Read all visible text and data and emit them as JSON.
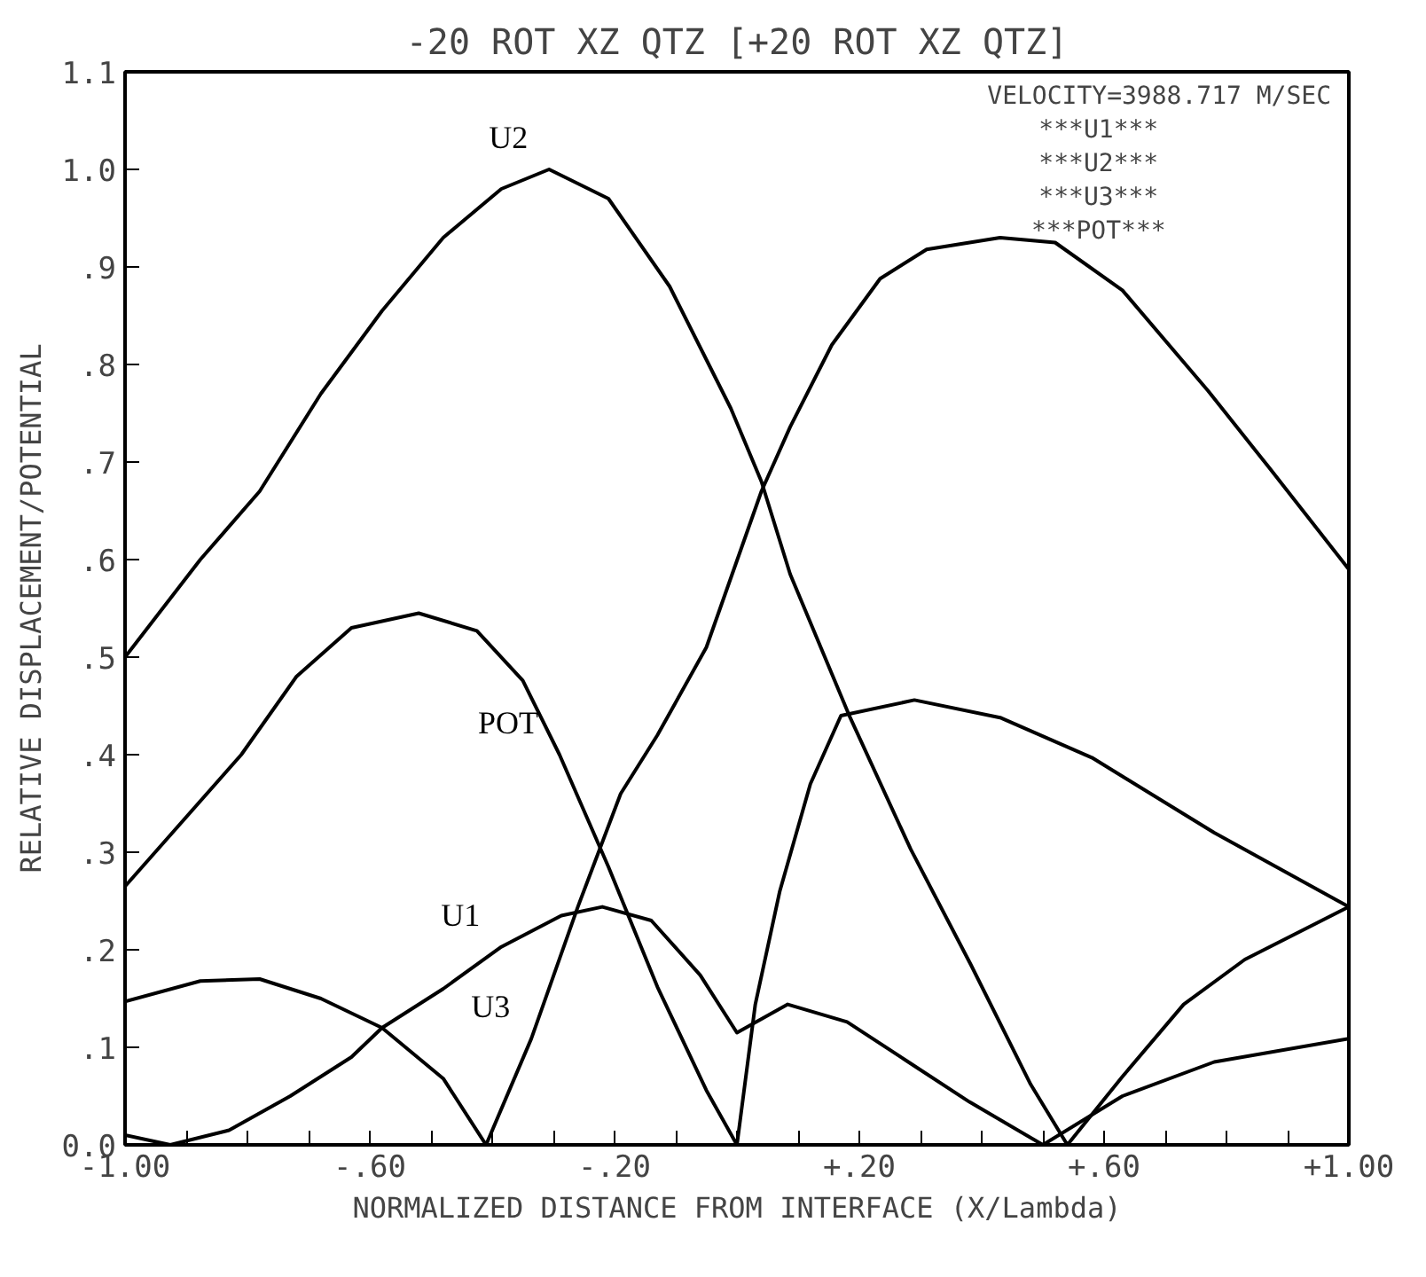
{
  "chart_data": {
    "type": "line",
    "title": "-20 ROT XZ QTZ [+20 ROT XZ QTZ]",
    "xlabel": "NORMALIZED DISTANCE FROM INTERFACE (X/Lambda)",
    "ylabel": "RELATIVE DISPLACEMENT/POTENTIAL",
    "annotations": [
      "VELOCITY=3988.717 M/SEC",
      "***U1***",
      "***U2***",
      "***U3***",
      "***POT***"
    ],
    "xlim": [
      -1.0,
      1.0
    ],
    "ylim": [
      0.0,
      1.1
    ],
    "xticks": [
      {
        "value": -1.0,
        "label": "-1.00"
      },
      {
        "value": -0.9,
        "label": null
      },
      {
        "value": -0.8,
        "label": null
      },
      {
        "value": -0.7,
        "label": null
      },
      {
        "value": -0.6,
        "label": "-.60"
      },
      {
        "value": -0.5,
        "label": null
      },
      {
        "value": -0.4,
        "label": null
      },
      {
        "value": -0.3,
        "label": null
      },
      {
        "value": -0.2,
        "label": "-.20"
      },
      {
        "value": -0.1,
        "label": null
      },
      {
        "value": 0.0,
        "label": null
      },
      {
        "value": 0.1,
        "label": null
      },
      {
        "value": 0.2,
        "label": "+.20"
      },
      {
        "value": 0.3,
        "label": null
      },
      {
        "value": 0.4,
        "label": null
      },
      {
        "value": 0.5,
        "label": null
      },
      {
        "value": 0.6,
        "label": "+.60"
      },
      {
        "value": 0.7,
        "label": null
      },
      {
        "value": 0.8,
        "label": null
      },
      {
        "value": 0.9,
        "label": null
      },
      {
        "value": 1.0,
        "label": "+1.00"
      }
    ],
    "yticks": [
      {
        "value": 0.0,
        "label": "0.0"
      },
      {
        "value": 0.1,
        "label": ".1"
      },
      {
        "value": 0.2,
        "label": ".2"
      },
      {
        "value": 0.3,
        "label": ".3"
      },
      {
        "value": 0.4,
        "label": ".4"
      },
      {
        "value": 0.5,
        "label": ".5"
      },
      {
        "value": 0.6,
        "label": ".6"
      },
      {
        "value": 0.7,
        "label": ".7"
      },
      {
        "value": 0.8,
        "label": ".8"
      },
      {
        "value": 0.9,
        "label": ".9"
      },
      {
        "value": 1.0,
        "label": "1.0"
      },
      {
        "value": 1.1,
        "label": "1.1"
      }
    ],
    "grid": false,
    "marker": "none",
    "line_style": "solid",
    "series": [
      {
        "name": "U1",
        "color": "#000000",
        "x": [
          -1.0,
          -0.926,
          -0.83,
          -0.73,
          -0.63,
          -0.58,
          -0.48,
          -0.385,
          -0.287,
          -0.22,
          -0.14,
          -0.06,
          0.0,
          0.083,
          0.18,
          0.28,
          0.38,
          0.5,
          0.63,
          0.78,
          1.0
        ],
        "values": [
          0.01,
          0.0,
          0.015,
          0.05,
          0.09,
          0.12,
          0.16,
          0.203,
          0.235,
          0.244,
          0.23,
          0.174,
          0.115,
          0.144,
          0.126,
          0.085,
          0.044,
          0.0,
          0.05,
          0.085,
          0.109
        ]
      },
      {
        "name": "U2",
        "color": "#000000",
        "x": [
          -1.0,
          -0.877,
          -0.78,
          -0.68,
          -0.58,
          -0.48,
          -0.385,
          -0.307,
          -0.21,
          -0.11,
          -0.01,
          0.04,
          0.087,
          0.185,
          0.284,
          0.382,
          0.48,
          0.54,
          0.63,
          0.73,
          0.83,
          1.0
        ],
        "values": [
          0.5,
          0.6,
          0.67,
          0.77,
          0.855,
          0.93,
          0.98,
          1.0,
          0.97,
          0.88,
          0.755,
          0.68,
          0.585,
          0.438,
          0.303,
          0.185,
          0.062,
          0.0,
          0.07,
          0.144,
          0.19,
          0.244
        ]
      },
      {
        "name": "U3",
        "color": "#000000",
        "x": [
          -1.0,
          -0.877,
          -0.78,
          -0.68,
          -0.58,
          -0.48,
          -0.41,
          -0.336,
          -0.26,
          -0.19,
          -0.13,
          -0.05,
          0.04,
          0.087,
          0.155,
          0.234,
          0.31,
          0.43,
          0.52,
          0.63,
          0.77,
          0.87,
          1.0
        ],
        "values": [
          0.147,
          0.168,
          0.17,
          0.15,
          0.12,
          0.068,
          0.0,
          0.109,
          0.244,
          0.36,
          0.42,
          0.51,
          0.67,
          0.736,
          0.82,
          0.888,
          0.918,
          0.93,
          0.925,
          0.876,
          0.773,
          0.694,
          0.59
        ]
      },
      {
        "name": "POT",
        "color": "#000000",
        "x": [
          -1.0,
          -0.81,
          -0.72,
          -0.63,
          -0.52,
          -0.425,
          -0.35,
          -0.29,
          -0.21,
          -0.13,
          -0.05,
          0.0,
          0.03,
          0.07,
          0.12,
          0.17,
          0.29,
          0.43,
          0.58,
          0.78,
          1.0
        ],
        "values": [
          0.265,
          0.4,
          0.48,
          0.53,
          0.545,
          0.527,
          0.476,
          0.4,
          0.285,
          0.162,
          0.056,
          0.0,
          0.144,
          0.26,
          0.37,
          0.44,
          0.456,
          0.438,
          0.397,
          0.32,
          0.244
        ]
      }
    ]
  }
}
